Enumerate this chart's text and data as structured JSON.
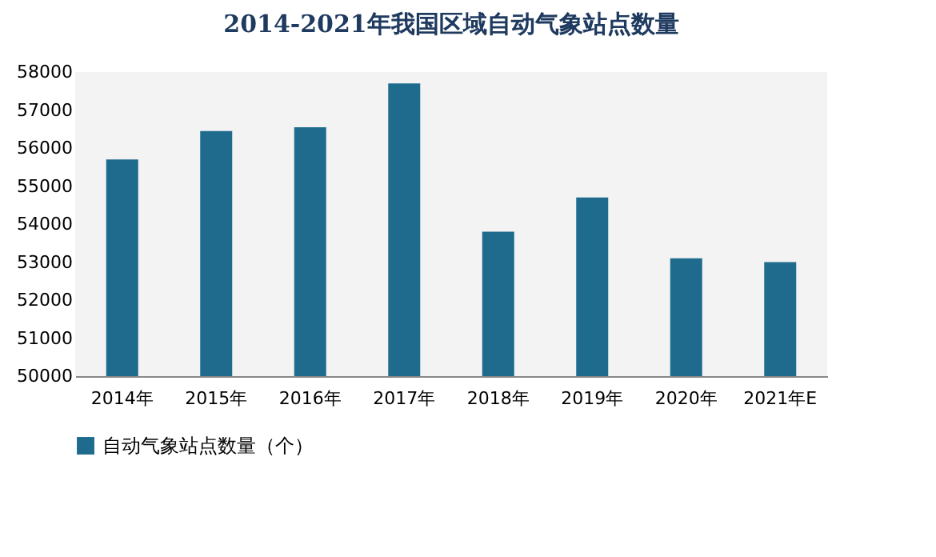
{
  "chart_data": {
    "type": "bar",
    "title": "2014-2021年我国区域自动气象站点数量",
    "categories": [
      "2014年",
      "2015年",
      "2016年",
      "2017年",
      "2018年",
      "2019年",
      "2020年",
      "2021年E"
    ],
    "series": [
      {
        "name": "自动气象站点数量（个）",
        "color": "#1f6b8e",
        "values": [
          55700,
          56450,
          56550,
          57700,
          53800,
          54700,
          53100,
          53000
        ]
      }
    ],
    "ylim": [
      50000,
      58000
    ],
    "yticks": [
      50000,
      51000,
      52000,
      53000,
      54000,
      55000,
      56000,
      57000,
      58000
    ],
    "grid": false,
    "legend": "bottom"
  }
}
